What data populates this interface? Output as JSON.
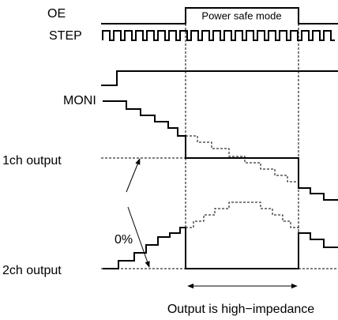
{
  "signals": {
    "oe": "OE",
    "step": "STEP",
    "moni": "MONI",
    "ch1": "1ch output",
    "ch2": "2ch output"
  },
  "power_safe_mode": "Power safe mode",
  "zero_percent": "0%",
  "note": "Output is high−impedance"
}
